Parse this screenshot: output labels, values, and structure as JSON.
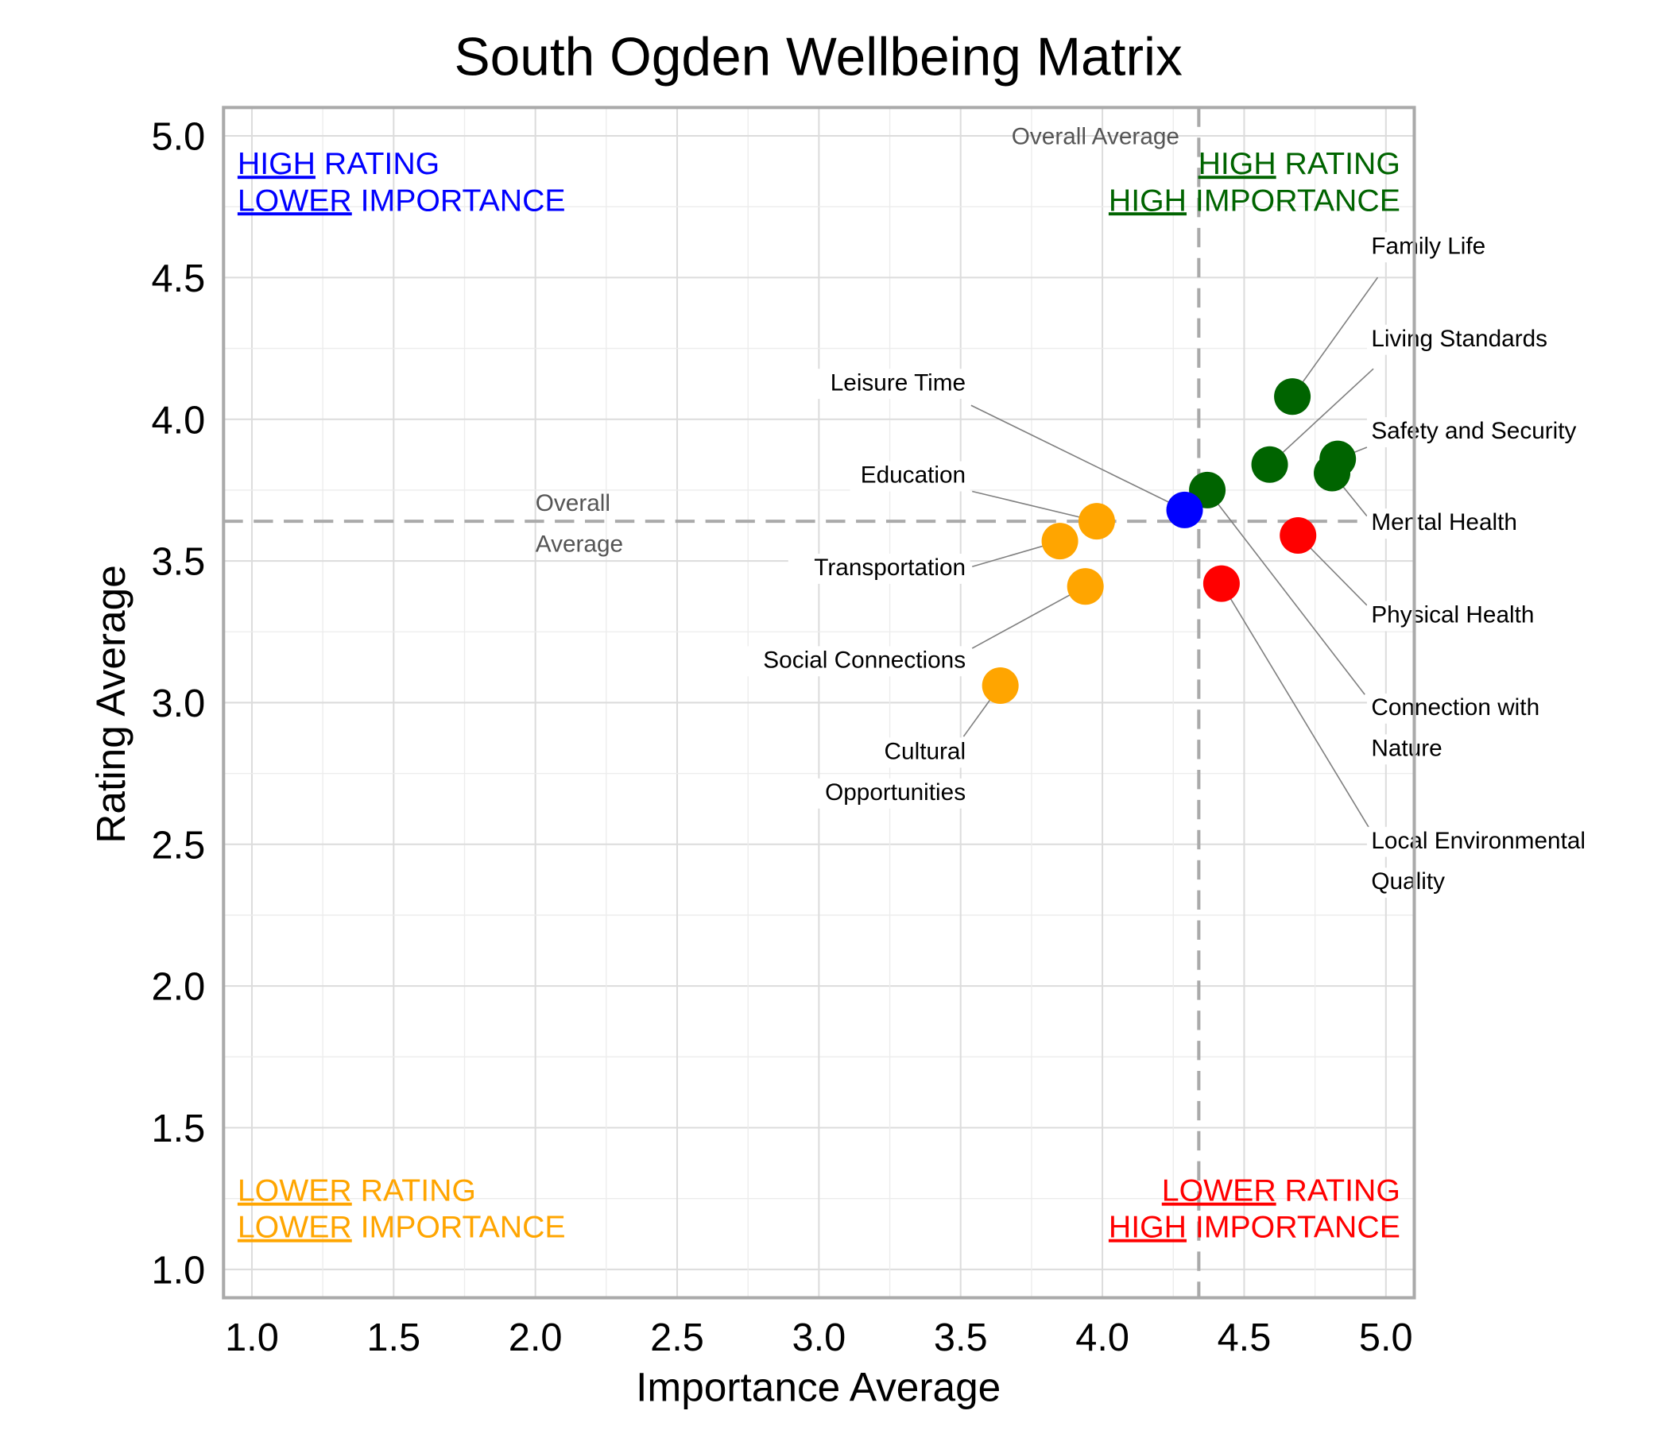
{
  "chart_data": {
    "type": "scatter",
    "title": "South Ogden Wellbeing Matrix",
    "xlabel": "Importance Average",
    "ylabel": "Rating Average",
    "xlim": [
      0.9,
      5.1
    ],
    "ylim": [
      0.9,
      5.1
    ],
    "xticks": [
      "1.0",
      "1.5",
      "2.0",
      "2.5",
      "3.0",
      "3.5",
      "4.0",
      "4.5",
      "5.0"
    ],
    "yticks": [
      "1.0",
      "1.5",
      "2.0",
      "2.5",
      "3.0",
      "3.5",
      "4.0",
      "4.5",
      "5.0"
    ],
    "grid": true,
    "averages": {
      "x": 4.34,
      "y": 3.64,
      "x_label": "Overall Average",
      "y_label_lines": [
        "Overall",
        "Average"
      ]
    },
    "colors": {
      "high_high": "#006400",
      "high_low": "#0000ff",
      "low_low": "#ffa500",
      "low_high": "#ff0000"
    },
    "quadrant_labels": {
      "top_left": {
        "lines": [
          [
            "HIGH",
            " RATING"
          ],
          [
            "LOWER",
            " IMPORTANCE"
          ]
        ],
        "color": "#0000ff"
      },
      "top_right": {
        "lines": [
          [
            "HIGH",
            " RATING"
          ],
          [
            "HIGH",
            " IMPORTANCE"
          ]
        ],
        "color": "#006400"
      },
      "bottom_left": {
        "lines": [
          [
            "LOWER",
            " RATING"
          ],
          [
            "LOWER",
            " IMPORTANCE"
          ]
        ],
        "color": "#ffa500"
      },
      "bottom_right": {
        "lines": [
          [
            "LOWER",
            " RATING"
          ],
          [
            "HIGH",
            " IMPORTANCE"
          ]
        ],
        "color": "#ff0000"
      }
    },
    "points": [
      {
        "name": "Family Life",
        "label_lines": [
          "Family Life"
        ],
        "x": 4.67,
        "y": 4.08,
        "color": "#006400"
      },
      {
        "name": "Living Standards",
        "label_lines": [
          "Living Standards"
        ],
        "x": 4.59,
        "y": 3.84,
        "color": "#006400"
      },
      {
        "name": "Safety and Security",
        "label_lines": [
          "Safety and Security"
        ],
        "x": 4.83,
        "y": 3.86,
        "color": "#006400"
      },
      {
        "name": "Mental Health",
        "label_lines": [
          "Mental Health"
        ],
        "x": 4.81,
        "y": 3.81,
        "color": "#006400"
      },
      {
        "name": "Connection with Nature",
        "label_lines": [
          "Connection with",
          "Nature"
        ],
        "x": 4.37,
        "y": 3.75,
        "color": "#006400"
      },
      {
        "name": "Leisure Time",
        "label_lines": [
          "Leisure Time"
        ],
        "x": 4.29,
        "y": 3.68,
        "color": "#0000ff"
      },
      {
        "name": "Physical Health",
        "label_lines": [
          "Physical Health"
        ],
        "x": 4.69,
        "y": 3.59,
        "color": "#ff0000"
      },
      {
        "name": "Local Environmental Quality",
        "label_lines": [
          "Local Environmental",
          "Quality"
        ],
        "x": 4.42,
        "y": 3.42,
        "color": "#ff0000"
      },
      {
        "name": "Education",
        "label_lines": [
          "Education"
        ],
        "x": 3.98,
        "y": 3.64,
        "color": "#ffa500"
      },
      {
        "name": "Transportation",
        "label_lines": [
          "Transportation"
        ],
        "x": 3.85,
        "y": 3.57,
        "color": "#ffa500"
      },
      {
        "name": "Social Connections",
        "label_lines": [
          "Social Connections"
        ],
        "x": 3.94,
        "y": 3.41,
        "color": "#ffa500"
      },
      {
        "name": "Cultural Opportunities",
        "label_lines": [
          "Cultural",
          "Opportunities"
        ],
        "x": 3.64,
        "y": 3.06,
        "color": "#ffa500"
      }
    ]
  }
}
